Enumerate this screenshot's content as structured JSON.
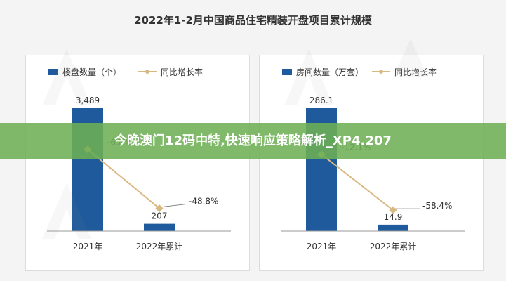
{
  "title": "2022年1-2月中国商品住宅精装开盘项目累计规模",
  "banner": "今晚澳门12码中特,快速响应策略解析_XP4.207",
  "colors": {
    "bar": "#1f5a9c",
    "line": "#d9b982",
    "marker": "#d9b982",
    "axis": "#9a9a9a",
    "text": "#333333"
  },
  "chart_data": [
    {
      "type": "bar",
      "categories": [
        "2021年",
        "2022年累计"
      ],
      "series": [
        {
          "name": "楼盘数量（个）",
          "type": "bar",
          "values": [
            3489,
            207
          ],
          "value_labels": [
            "3,489",
            "207"
          ]
        },
        {
          "name": "同比增长率",
          "type": "line",
          "values": [
            -6.8,
            -48.8
          ],
          "value_labels": [
            "-6.8%",
            "-48.8%"
          ]
        }
      ],
      "legend_position": "top-left",
      "grid": false
    },
    {
      "type": "bar",
      "categories": [
        "2021年",
        "2022年累计"
      ],
      "series": [
        {
          "name": "房间数量（万套）",
          "type": "bar",
          "values": [
            286.1,
            14.9
          ],
          "value_labels": [
            "286.1",
            "14.9"
          ]
        },
        {
          "name": "同比增长率",
          "type": "line",
          "values": [
            -12.1,
            -58.4
          ],
          "value_labels": [
            "-12.1%",
            "-58.4%"
          ]
        }
      ],
      "legend_position": "top-left",
      "grid": false
    }
  ]
}
